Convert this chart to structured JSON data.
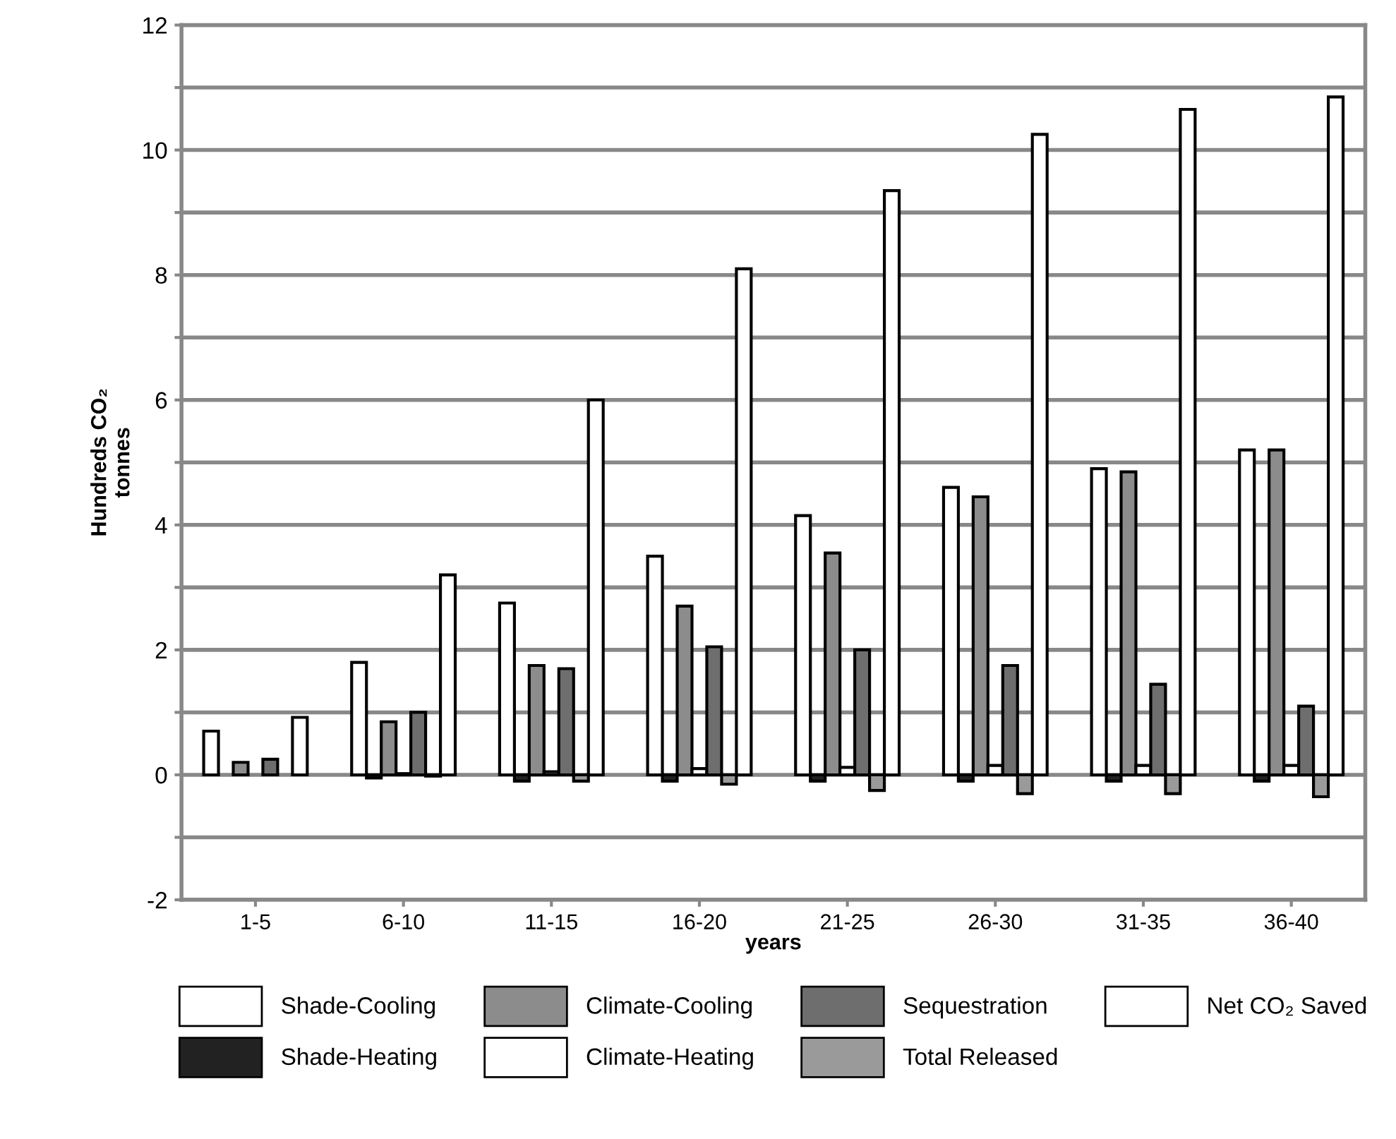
{
  "chart_data": {
    "type": "bar",
    "categories": [
      "1-5",
      "6-10",
      "11-15",
      "16-20",
      "21-25",
      "26-30",
      "31-35",
      "36-40"
    ],
    "xlabel": "years",
    "ylabel": "Hundreds CO₂\ntonnes",
    "ylim": [
      -2,
      12
    ],
    "yticks": [
      -2,
      {
        "value": -1,
        "label": null
      },
      0,
      {
        "value": 1,
        "label": null
      },
      2,
      {
        "value": 3,
        "label": null
      },
      4,
      {
        "value": 5,
        "label": null
      },
      6,
      {
        "value": 7,
        "label": null
      },
      8,
      {
        "value": 9,
        "label": null
      },
      10,
      {
        "value": 11,
        "label": null
      },
      12
    ],
    "grid": "y",
    "legend": "bottom",
    "series": [
      {
        "name": "Shade-Cooling",
        "color": "#ffffff",
        "values": [
          0.7,
          1.8,
          2.75,
          3.5,
          4.15,
          4.6,
          4.9,
          5.2
        ]
      },
      {
        "name": "Shade-Heating",
        "color": "#222222",
        "values": [
          null,
          -0.05,
          -0.1,
          -0.1,
          -0.1,
          -0.1,
          -0.1,
          -0.1
        ]
      },
      {
        "name": "Climate-Cooling",
        "color": "#8c8c8c",
        "values": [
          0.2,
          0.85,
          1.75,
          2.7,
          3.55,
          4.45,
          4.85,
          5.2
        ]
      },
      {
        "name": "Climate-Heating",
        "color": "#ffffff",
        "values": [
          null,
          0.02,
          0.05,
          0.1,
          0.12,
          0.15,
          0.15,
          0.15
        ]
      },
      {
        "name": "Sequestration",
        "color": "#6e6e6e",
        "values": [
          0.25,
          1.0,
          1.7,
          2.05,
          2.0,
          1.75,
          1.45,
          1.1
        ]
      },
      {
        "name": "Total Released",
        "color": "#9a9a9a",
        "values": [
          null,
          -0.02,
          -0.1,
          -0.15,
          -0.25,
          -0.3,
          -0.3,
          -0.35
        ]
      },
      {
        "name": "Net CO₂ Saved",
        "color": "#ffffff",
        "values": [
          0.92,
          3.2,
          6.0,
          8.1,
          9.35,
          10.25,
          10.65,
          10.85
        ]
      }
    ]
  }
}
